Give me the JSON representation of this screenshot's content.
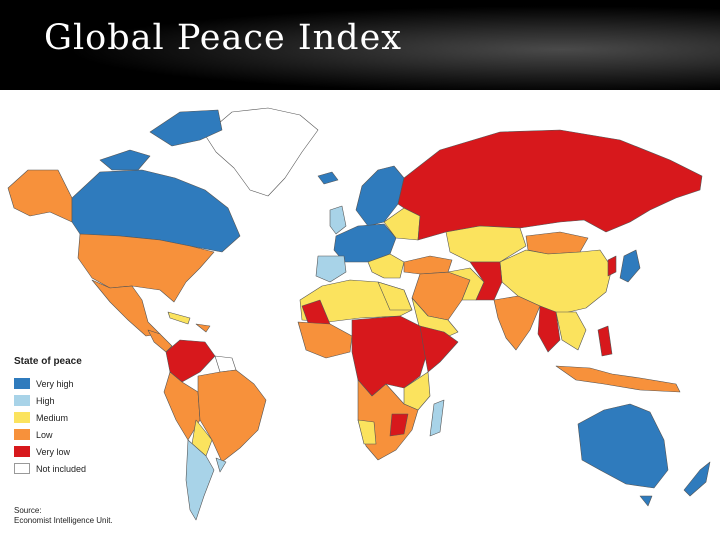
{
  "slide": {
    "title": "Global Peace Index"
  },
  "legend": {
    "title": "State of peace",
    "items": [
      {
        "label": "Very high",
        "color": "#2f7bbd"
      },
      {
        "label": "High",
        "color": "#a8d3e8"
      },
      {
        "label": "Medium",
        "color": "#fbe35e"
      },
      {
        "label": "Low",
        "color": "#f7913b"
      },
      {
        "label": "Very low",
        "color": "#d7181c"
      },
      {
        "label": "Not included",
        "color": "#ffffff"
      }
    ]
  },
  "source": {
    "line1": "Source:",
    "line2": "Economist Intelligence Unit."
  },
  "colors": {
    "ocean": "#ffffff",
    "border": "#555555",
    "banner": "#000000",
    "title_text": "#ffffff"
  }
}
